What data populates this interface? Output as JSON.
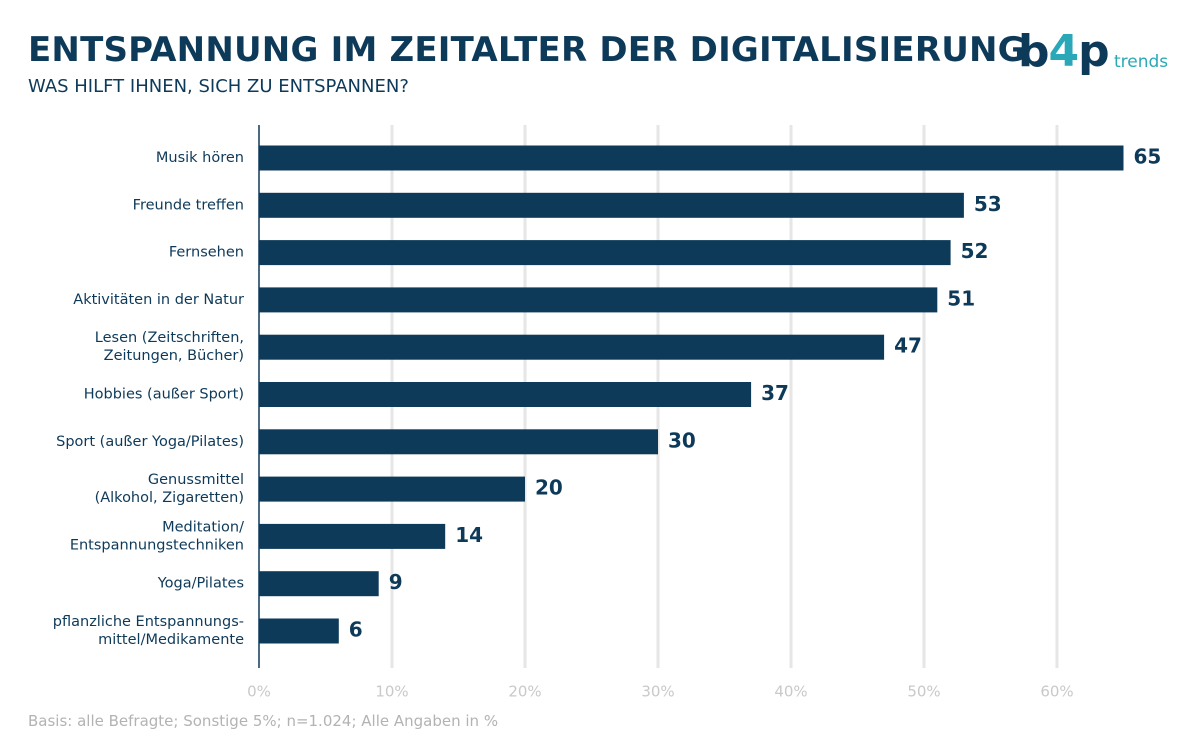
{
  "header": {
    "title": "ENTSPANNUNG IM ZEITALTER DER DIGITALISIERUNG",
    "subtitle": "WAS HILFT IHNEN, SICH ZU ENTSPANNEN?"
  },
  "logo": {
    "main_b": "b",
    "main_4": "4",
    "main_p": "p",
    "sub": "trends"
  },
  "footnote": "Basis: alle Befragte; Sonstige 5%; n=1.024; Alle Angaben in %",
  "colors": {
    "bar": "#0e3a5a",
    "grid": "#e6e6e6",
    "axis": "#0e3a5a",
    "tick_label": "#c9c9c9",
    "accent": "#2aa8b8"
  },
  "chart_data": {
    "type": "bar",
    "orientation": "horizontal",
    "categories": [
      [
        "Musik hören"
      ],
      [
        "Freunde treffen"
      ],
      [
        "Fernsehen"
      ],
      [
        "Aktivitäten in der Natur"
      ],
      [
        "Lesen (Zeitschriften,",
        "Zeitungen, Bücher)"
      ],
      [
        "Hobbies (außer Sport)"
      ],
      [
        "Sport (außer Yoga/Pilates)"
      ],
      [
        "Genussmittel",
        "(Alkohol, Zigaretten)"
      ],
      [
        "Meditation/",
        "Entspannungstechniken"
      ],
      [
        "Yoga/Pilates"
      ],
      [
        "pflanzliche Entspannungs-",
        "mittel/Medikamente"
      ]
    ],
    "values": [
      65,
      53,
      52,
      51,
      47,
      37,
      30,
      20,
      14,
      9,
      6
    ],
    "x_ticks": [
      "0%",
      "10%",
      "20%",
      "30%",
      "40%",
      "50%",
      "60%"
    ],
    "xlim": [
      0,
      70
    ],
    "grid": true
  }
}
